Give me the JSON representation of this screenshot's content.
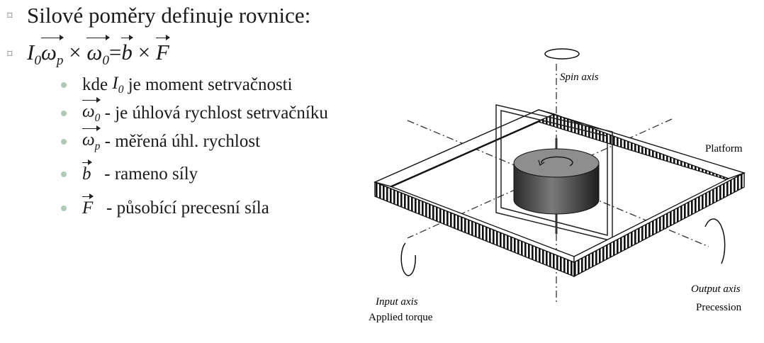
{
  "heading": "Silové poměry definuje rovnice:",
  "formula": {
    "I": "I",
    "I_sub": "0",
    "omega_p": "ω",
    "omega_p_sub": "p",
    "times1": " × ",
    "omega_0": "ω",
    "omega_0_sub": "0",
    "equals": "=",
    "b": "b",
    "times2": " × ",
    "F": "F"
  },
  "definitions": [
    {
      "prefix": "kde ",
      "symbol": "I",
      "symbol_sub": "0",
      "text": " je moment setrvačnosti"
    },
    {
      "symbol": "ω",
      "symbol_sub": "0",
      "text": " - je úhlová rychlost setrvačníku"
    },
    {
      "symbol": "ω",
      "symbol_sub": "p",
      "text": " - měřená úhl. rychlost"
    },
    {
      "symbol": "b",
      "text": "   - rameno síly"
    },
    {
      "symbol": "F",
      "text": "   - působící precesní síla"
    }
  ],
  "diagram": {
    "spin_axis": "Spin axis",
    "platform": "Platform",
    "input_axis": "Input axis",
    "applied_torque": "Applied torque",
    "output_axis": "Output axis",
    "precession": "Precession"
  },
  "colors": {
    "bullet_main": "#8a8a8a",
    "bullet_sub": "#b3c9b8",
    "text": "#1a1a1a"
  }
}
